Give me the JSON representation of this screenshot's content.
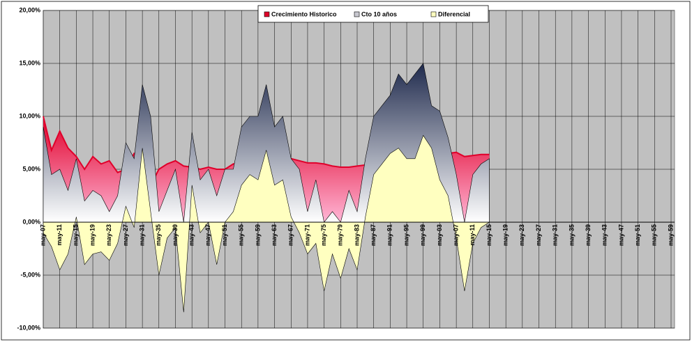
{
  "chart_data": {
    "type": "area",
    "categories": [
      "may-07",
      null,
      "may-11",
      null,
      "may-15",
      null,
      "may-19",
      null,
      "may-23",
      null,
      "may-27",
      null,
      "may-31",
      null,
      "may-35",
      null,
      "may-39",
      null,
      "may-43",
      null,
      "may-47",
      null,
      "may-51",
      null,
      "may-55",
      null,
      "may-59",
      null,
      "may-63",
      null,
      "may-67",
      null,
      "may-71",
      null,
      "may-75",
      null,
      "may-79",
      null,
      "may-83",
      null,
      "may-87",
      null,
      "may-91",
      null,
      "may-95",
      null,
      "may-99",
      null,
      "may-03",
      null,
      "may-07",
      null,
      "may-11",
      null,
      "may-15",
      null,
      "may-19",
      null,
      "may-23",
      null,
      "may-27",
      null,
      "may-31",
      null,
      "may-35",
      null,
      "may-39",
      null,
      "may-43",
      null,
      "may-47",
      null,
      "may-51",
      null,
      "may-55",
      null,
      "may-59"
    ],
    "series": [
      {
        "name": "Crecimiento Historico",
        "color": "#e0002a",
        "values": [
          10,
          6.8,
          8.6,
          7,
          6.2,
          5,
          6.2,
          5.5,
          5.8,
          4.7,
          5,
          6.5,
          6.2,
          3.5,
          5,
          5.5,
          5.8,
          5.3,
          5.2,
          5,
          5.2,
          5,
          5,
          5.5,
          5.6,
          5.7,
          5.8,
          5.9,
          5.9,
          6,
          6,
          5.8,
          5.6,
          5.6,
          5.5,
          5.3,
          5.2,
          5.2,
          5.3,
          5.4,
          5.6,
          5.8,
          6,
          6.1,
          6.2,
          6.3,
          6.4,
          6.5,
          6.5,
          6.5,
          6.6,
          6.2,
          6.3,
          6.4,
          6.4,
          null,
          null,
          null,
          null,
          null,
          null,
          null,
          null,
          null,
          null,
          null,
          null,
          null,
          null,
          null,
          null,
          null,
          null,
          null,
          null,
          null,
          null
        ]
      },
      {
        "name": "Cto 10 años",
        "color": "#1f2a4d",
        "values": [
          9,
          4.5,
          5,
          3,
          6,
          2,
          3,
          2.5,
          1,
          2.5,
          7.5,
          6,
          13,
          10,
          1,
          3,
          5,
          0,
          8.5,
          4,
          5,
          2.5,
          5,
          5,
          9,
          10,
          10,
          13,
          9,
          10,
          6,
          5,
          1,
          4,
          0,
          1,
          0,
          3,
          1,
          6,
          10,
          11,
          12,
          14,
          13,
          14,
          15,
          11,
          10.5,
          8,
          4.5,
          0,
          4.5,
          5.5,
          6,
          null,
          null,
          null,
          null,
          null,
          null,
          null,
          null,
          null,
          null,
          null,
          null,
          null,
          null,
          null,
          null,
          null,
          null,
          null,
          null,
          null,
          null
        ]
      },
      {
        "name": "Diferencial",
        "color": "#ffffc0",
        "values": [
          -1,
          -2.3,
          -4.5,
          -3,
          0.5,
          -4,
          -3,
          -2.8,
          -3.6,
          -2,
          1.5,
          -0.5,
          7,
          1,
          -5,
          -1.5,
          -0.5,
          -8.5,
          3.5,
          -1,
          0,
          -4,
          0,
          1,
          3.5,
          4.5,
          4,
          6.8,
          3.5,
          4,
          0.5,
          -1,
          -3,
          -2,
          -6.5,
          -3,
          -5.3,
          -2.5,
          -4.5,
          0.5,
          4.5,
          5.5,
          6.5,
          7,
          6,
          6,
          8.2,
          7,
          4,
          2.5,
          -1.5,
          -6.5,
          -2,
          -0.5,
          0,
          null,
          null,
          null,
          null,
          null,
          null,
          null,
          null,
          null,
          null,
          null,
          null,
          null,
          null,
          null,
          null,
          null,
          null,
          null,
          null,
          null,
          null
        ]
      }
    ],
    "ylim": [
      -10,
      20
    ],
    "yticks": [
      {
        "value": -10,
        "label": "-10,00%"
      },
      {
        "value": -5,
        "label": "-5,00%"
      },
      {
        "value": 0,
        "label": "0,00%"
      },
      {
        "value": 5,
        "label": "5,00%"
      },
      {
        "value": 10,
        "label": "10,00%"
      },
      {
        "value": 15,
        "label": "15,00%"
      },
      {
        "value": 20,
        "label": "20,00%"
      }
    ],
    "grid": true
  }
}
